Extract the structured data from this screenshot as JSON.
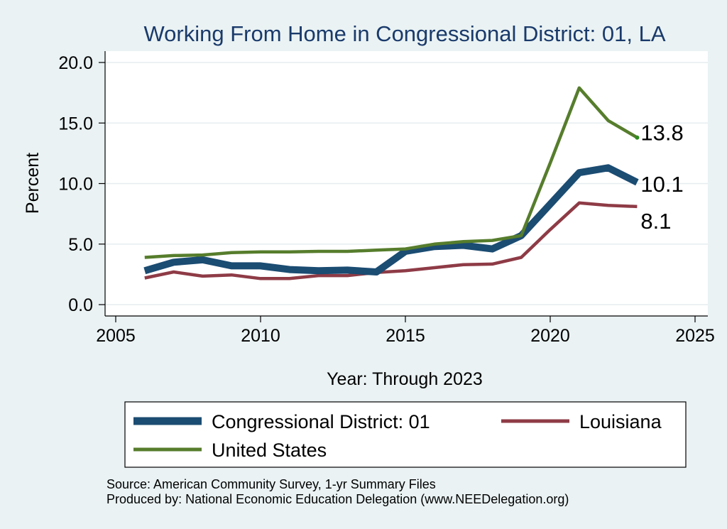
{
  "chart_data": {
    "type": "line",
    "title": "Working From Home in Congressional District: 01, LA",
    "xlabel": "Year: Through 2023",
    "ylabel": "Percent",
    "xlim": [
      2005,
      2025
    ],
    "ylim": [
      0,
      20
    ],
    "xticks": [
      "2005",
      "2010",
      "2015",
      "2020",
      "2025"
    ],
    "yticks": [
      "0.0",
      "5.0",
      "10.0",
      "15.0",
      "20.0"
    ],
    "grid": true,
    "legend_position": "bottom",
    "x": [
      2006,
      2007,
      2008,
      2009,
      2010,
      2011,
      2012,
      2013,
      2014,
      2015,
      2016,
      2017,
      2018,
      2019,
      2020,
      2021,
      2022,
      2023
    ],
    "series": [
      {
        "name": "Congressional District: 01",
        "color": "#1b4c72",
        "values": [
          2.8,
          3.5,
          3.7,
          3.2,
          3.2,
          2.9,
          2.8,
          2.85,
          2.7,
          4.4,
          4.8,
          4.9,
          4.6,
          5.7,
          8.3,
          10.9,
          11.3,
          10.1
        ],
        "end_label": "10.1"
      },
      {
        "name": "Louisiana",
        "color": "#8e3b46",
        "values": [
          2.2,
          2.7,
          2.35,
          2.45,
          2.15,
          2.15,
          2.4,
          2.4,
          2.65,
          2.8,
          3.05,
          3.3,
          3.35,
          3.9,
          6.2,
          8.4,
          8.2,
          8.1
        ],
        "end_label": "8.1"
      },
      {
        "name": "United States",
        "color": "#567d2c",
        "values": [
          3.9,
          4.05,
          4.1,
          4.3,
          4.35,
          4.35,
          4.4,
          4.4,
          4.5,
          4.6,
          5.0,
          5.2,
          5.3,
          5.7,
          11.7,
          17.9,
          15.2,
          13.8
        ],
        "end_label": "13.8"
      }
    ],
    "source_note": "Source: American Community Survey, 1-yr Summary Files",
    "producer_note": "Produced by: National Economic Education Delegation (www.NEEDelegation.org)"
  }
}
